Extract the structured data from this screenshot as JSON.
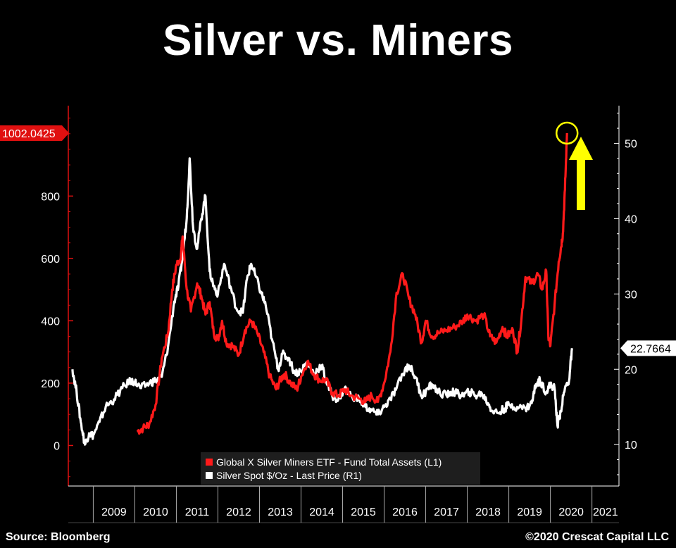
{
  "title": "Silver vs. Miners",
  "source": "Source: Bloomberg",
  "credit": "©2020 Crescat Capital LLC",
  "colors": {
    "miners": "#ff1a1a",
    "silver": "#ffffff",
    "background": "#000000",
    "marker": "#ffff00",
    "left_axis": "#e01010"
  },
  "chart_data": {
    "type": "line",
    "x_ticks": [
      "2009",
      "2010",
      "2011",
      "2012",
      "2013",
      "2014",
      "2015",
      "2016",
      "2017",
      "2018",
      "2019",
      "2020",
      "2021"
    ],
    "left_axis": {
      "ylim": [
        -130,
        1090
      ],
      "ticks": [
        0,
        200,
        400,
        600,
        800
      ],
      "last_value_label": "1002.0425"
    },
    "right_axis": {
      "ylim": [
        4.5,
        55
      ],
      "ticks": [
        10,
        20,
        30,
        40,
        50
      ],
      "last_value_label": "22.7664"
    },
    "legend": {
      "placement": "bottom-center",
      "entries": [
        "Global X Silver Miners ETF - Fund Total Assets (L1)",
        "Silver Spot $/Oz - Last Price (R1)"
      ]
    },
    "annotations": [
      "circle at latest miners value",
      "yellow up arrow"
    ],
    "series": [
      {
        "name": "Global X Silver Miners ETF - Fund Total Assets (L1)",
        "axis": "left",
        "points": [
          [
            2010.05,
            45
          ],
          [
            2010.2,
            55
          ],
          [
            2010.35,
            70
          ],
          [
            2010.5,
            130
          ],
          [
            2010.65,
            280
          ],
          [
            2010.8,
            360
          ],
          [
            2010.9,
            500
          ],
          [
            2011.0,
            580
          ],
          [
            2011.1,
            600
          ],
          [
            2011.15,
            670
          ],
          [
            2011.25,
            500
          ],
          [
            2011.35,
            430
          ],
          [
            2011.5,
            520
          ],
          [
            2011.6,
            480
          ],
          [
            2011.7,
            420
          ],
          [
            2011.8,
            460
          ],
          [
            2011.9,
            360
          ],
          [
            2012.0,
            340
          ],
          [
            2012.1,
            400
          ],
          [
            2012.2,
            330
          ],
          [
            2012.35,
            320
          ],
          [
            2012.5,
            290
          ],
          [
            2012.65,
            370
          ],
          [
            2012.8,
            400
          ],
          [
            2012.95,
            360
          ],
          [
            2013.1,
            300
          ],
          [
            2013.25,
            220
          ],
          [
            2013.4,
            180
          ],
          [
            2013.5,
            210
          ],
          [
            2013.6,
            230
          ],
          [
            2013.75,
            200
          ],
          [
            2013.9,
            180
          ],
          [
            2014.0,
            220
          ],
          [
            2014.15,
            270
          ],
          [
            2014.3,
            230
          ],
          [
            2014.45,
            210
          ],
          [
            2014.6,
            210
          ],
          [
            2014.75,
            170
          ],
          [
            2014.9,
            160
          ],
          [
            2015.05,
            180
          ],
          [
            2015.2,
            160
          ],
          [
            2015.4,
            150
          ],
          [
            2015.55,
            140
          ],
          [
            2015.7,
            160
          ],
          [
            2015.85,
            140
          ],
          [
            2016.0,
            200
          ],
          [
            2016.15,
            300
          ],
          [
            2016.3,
            490
          ],
          [
            2016.45,
            550
          ],
          [
            2016.6,
            470
          ],
          [
            2016.75,
            420
          ],
          [
            2016.9,
            330
          ],
          [
            2017.0,
            400
          ],
          [
            2017.15,
            350
          ],
          [
            2017.3,
            360
          ],
          [
            2017.5,
            370
          ],
          [
            2017.7,
            380
          ],
          [
            2017.9,
            400
          ],
          [
            2018.0,
            420
          ],
          [
            2018.2,
            400
          ],
          [
            2018.4,
            420
          ],
          [
            2018.55,
            350
          ],
          [
            2018.7,
            330
          ],
          [
            2018.85,
            380
          ],
          [
            2018.95,
            350
          ],
          [
            2019.1,
            370
          ],
          [
            2019.2,
            300
          ],
          [
            2019.3,
            400
          ],
          [
            2019.4,
            540
          ],
          [
            2019.55,
            520
          ],
          [
            2019.7,
            550
          ],
          [
            2019.8,
            500
          ],
          [
            2019.9,
            560
          ],
          [
            2019.95,
            350
          ],
          [
            2020.0,
            320
          ],
          [
            2020.1,
            450
          ],
          [
            2020.2,
            590
          ],
          [
            2020.25,
            630
          ],
          [
            2020.3,
            680
          ],
          [
            2020.35,
            820
          ],
          [
            2020.4,
            1002
          ]
        ]
      },
      {
        "name": "Silver Spot $/Oz - Last Price (R1)",
        "axis": "right",
        "points": [
          [
            2008.5,
            20.0
          ],
          [
            2008.6,
            17.0
          ],
          [
            2008.7,
            13.0
          ],
          [
            2008.8,
            10.0
          ],
          [
            2008.9,
            11.5
          ],
          [
            2009.0,
            11.2
          ],
          [
            2009.15,
            13.0
          ],
          [
            2009.3,
            15.0
          ],
          [
            2009.5,
            16.0
          ],
          [
            2009.7,
            17.5
          ],
          [
            2009.9,
            18.5
          ],
          [
            2010.0,
            18.3
          ],
          [
            2010.15,
            17.5
          ],
          [
            2010.35,
            18.2
          ],
          [
            2010.5,
            18.5
          ],
          [
            2010.65,
            19.0
          ],
          [
            2010.8,
            23.0
          ],
          [
            2010.95,
            29.0
          ],
          [
            2011.05,
            31.0
          ],
          [
            2011.15,
            35.0
          ],
          [
            2011.25,
            40.0
          ],
          [
            2011.32,
            48.0
          ],
          [
            2011.4,
            39.0
          ],
          [
            2011.5,
            36.0
          ],
          [
            2011.6,
            40.0
          ],
          [
            2011.7,
            43.0
          ],
          [
            2011.8,
            33.0
          ],
          [
            2011.9,
            31.0
          ],
          [
            2012.0,
            30.0
          ],
          [
            2012.15,
            34.0
          ],
          [
            2012.3,
            31.0
          ],
          [
            2012.45,
            28.0
          ],
          [
            2012.6,
            27.5
          ],
          [
            2012.7,
            32.0
          ],
          [
            2012.8,
            34.0
          ],
          [
            2012.9,
            32.5
          ],
          [
            2013.05,
            30.0
          ],
          [
            2013.15,
            28.5
          ],
          [
            2013.3,
            24.0
          ],
          [
            2013.45,
            20.0
          ],
          [
            2013.55,
            22.0
          ],
          [
            2013.7,
            21.5
          ],
          [
            2013.85,
            19.5
          ],
          [
            2014.0,
            19.8
          ],
          [
            2014.15,
            21.0
          ],
          [
            2014.3,
            19.5
          ],
          [
            2014.5,
            20.5
          ],
          [
            2014.6,
            18.5
          ],
          [
            2014.75,
            16.5
          ],
          [
            2014.9,
            16.0
          ],
          [
            2015.05,
            17.5
          ],
          [
            2015.2,
            16.5
          ],
          [
            2015.4,
            16.0
          ],
          [
            2015.55,
            15.0
          ],
          [
            2015.7,
            14.5
          ],
          [
            2015.85,
            14.0
          ],
          [
            2016.0,
            15.0
          ],
          [
            2016.15,
            16.0
          ],
          [
            2016.3,
            17.5
          ],
          [
            2016.5,
            20.0
          ],
          [
            2016.6,
            20.5
          ],
          [
            2016.75,
            19.0
          ],
          [
            2016.9,
            16.5
          ],
          [
            2017.0,
            17.0
          ],
          [
            2017.15,
            18.0
          ],
          [
            2017.3,
            17.0
          ],
          [
            2017.5,
            16.5
          ],
          [
            2017.6,
            17.0
          ],
          [
            2017.75,
            16.8
          ],
          [
            2017.9,
            16.5
          ],
          [
            2018.05,
            17.0
          ],
          [
            2018.2,
            16.5
          ],
          [
            2018.35,
            16.8
          ],
          [
            2018.5,
            15.5
          ],
          [
            2018.6,
            14.5
          ],
          [
            2018.75,
            14.2
          ],
          [
            2018.9,
            14.8
          ],
          [
            2019.0,
            15.3
          ],
          [
            2019.2,
            15.0
          ],
          [
            2019.4,
            14.8
          ],
          [
            2019.55,
            15.5
          ],
          [
            2019.65,
            18.0
          ],
          [
            2019.75,
            18.5
          ],
          [
            2019.9,
            17.0
          ],
          [
            2020.0,
            18.0
          ],
          [
            2020.1,
            17.5
          ],
          [
            2020.17,
            12.5
          ],
          [
            2020.25,
            14.5
          ],
          [
            2020.35,
            17.5
          ],
          [
            2020.45,
            18.5
          ],
          [
            2020.52,
            22.8
          ]
        ]
      }
    ]
  }
}
